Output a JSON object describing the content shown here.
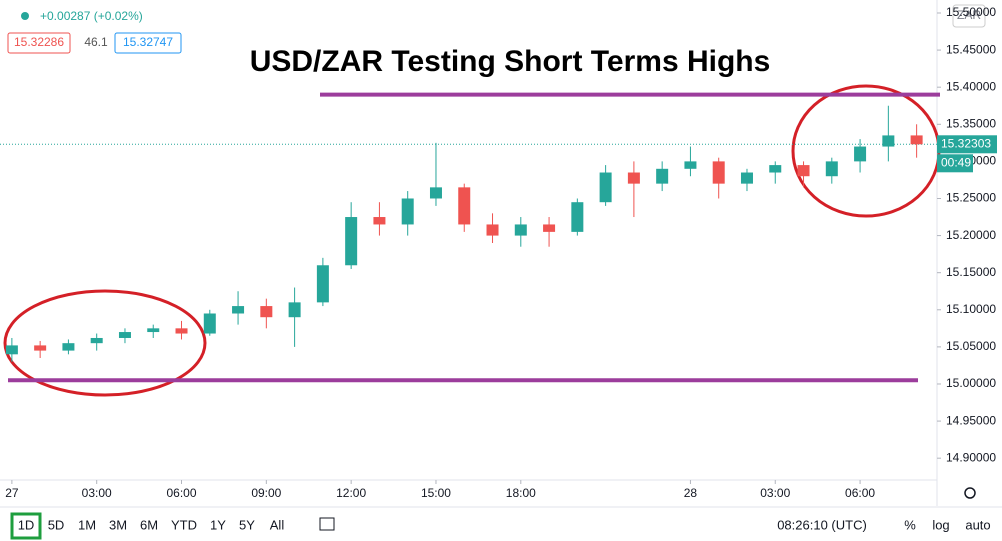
{
  "chart_data": {
    "type": "candlestick",
    "title": "USD/ZAR Testing Short Terms Highs",
    "change": "+0.00287 (+0.02%)",
    "bid": "15.32286",
    "spread": "46.1",
    "ask": "15.32747",
    "currency": "ZAR",
    "x": [
      0,
      1,
      2,
      3,
      4,
      5,
      6,
      7,
      8,
      9,
      10,
      11,
      12,
      13,
      14,
      15,
      16,
      17,
      18,
      19,
      20,
      21,
      22,
      23,
      24,
      25,
      26,
      27,
      28,
      29,
      30,
      31,
      32
    ],
    "open": [
      15.04,
      15.052,
      15.045,
      15.055,
      15.062,
      15.07,
      15.075,
      15.068,
      15.095,
      15.105,
      15.09,
      15.11,
      15.16,
      15.225,
      15.215,
      15.25,
      15.265,
      15.215,
      15.2,
      15.215,
      15.205,
      15.245,
      15.285,
      15.27,
      15.29,
      15.3,
      15.27,
      15.285,
      15.295,
      15.28,
      15.3,
      15.32,
      15.335
    ],
    "high": [
      15.062,
      15.058,
      15.06,
      15.068,
      15.075,
      15.08,
      15.085,
      15.1,
      15.125,
      15.115,
      15.13,
      15.17,
      15.245,
      15.245,
      15.26,
      15.325,
      15.27,
      15.23,
      15.225,
      15.225,
      15.25,
      15.295,
      15.3,
      15.3,
      15.32,
      15.305,
      15.29,
      15.3,
      15.3,
      15.305,
      15.33,
      15.375,
      15.35
    ],
    "low": [
      15.03,
      15.035,
      15.04,
      15.045,
      15.055,
      15.062,
      15.06,
      15.065,
      15.08,
      15.075,
      15.05,
      15.105,
      15.155,
      15.2,
      15.2,
      15.24,
      15.205,
      15.19,
      15.185,
      15.185,
      15.2,
      15.24,
      15.225,
      15.26,
      15.28,
      15.25,
      15.26,
      15.27,
      15.265,
      15.27,
      15.285,
      15.3,
      15.305
    ],
    "close": [
      15.052,
      15.045,
      15.055,
      15.062,
      15.07,
      15.075,
      15.068,
      15.095,
      15.105,
      15.09,
      15.11,
      15.16,
      15.225,
      15.215,
      15.25,
      15.265,
      15.215,
      15.2,
      15.215,
      15.205,
      15.245,
      15.285,
      15.27,
      15.29,
      15.3,
      15.27,
      15.285,
      15.295,
      15.28,
      15.3,
      15.32,
      15.335,
      15.323
    ],
    "up_color": "#26a69a",
    "down_color": "#ef5350",
    "xlim": [
      -0.42,
      32.65
    ],
    "xticks": [
      {
        "value": 0,
        "label": "27"
      },
      {
        "value": 3,
        "label": "03:00"
      },
      {
        "value": 6,
        "label": "06:00"
      },
      {
        "value": 9,
        "label": "09:00"
      },
      {
        "value": 12,
        "label": "12:00"
      },
      {
        "value": 15,
        "label": "15:00"
      },
      {
        "value": 18,
        "label": "18:00"
      },
      {
        "value": 24,
        "label": "28"
      },
      {
        "value": 27,
        "label": "03:00"
      },
      {
        "value": 30,
        "label": "06:00"
      }
    ],
    "ylim": [
      14.8706,
      15.5175
    ],
    "yticks": [
      {
        "value": 14.9,
        "label": "14.90000"
      },
      {
        "value": 14.95,
        "label": "14.95000"
      },
      {
        "value": 15.0,
        "label": "15.00000"
      },
      {
        "value": 15.05,
        "label": "15.05000"
      },
      {
        "value": 15.1,
        "label": "15.10000"
      },
      {
        "value": 15.15,
        "label": "15.15000"
      },
      {
        "value": 15.2,
        "label": "15.20000"
      },
      {
        "value": 15.25,
        "label": "15.25000"
      },
      {
        "value": 15.3,
        "label": "15.30000"
      },
      {
        "value": 15.35,
        "label": "15.35000"
      },
      {
        "value": 15.4,
        "label": "15.40000"
      },
      {
        "value": 15.45,
        "label": "15.45000"
      },
      {
        "value": 15.5,
        "label": "15.50000"
      }
    ],
    "levels": [
      15.39,
      15.005
    ],
    "level_color": "#9c3d9c",
    "last_price": 15.32303,
    "countdown": "00:49"
  },
  "toolbar": {
    "ranges": [
      "1D",
      "5D",
      "1M",
      "3M",
      "6M",
      "YTD",
      "1Y",
      "5Y",
      "All"
    ],
    "time": "08:26:10 (UTC)",
    "options": [
      "%",
      "log",
      "auto"
    ]
  }
}
